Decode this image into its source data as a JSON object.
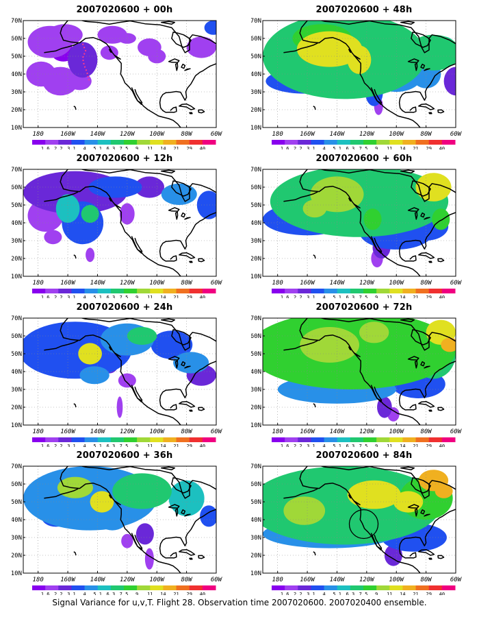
{
  "panels": [
    {
      "title": "2007020600 + 00h",
      "lead_hours": 0
    },
    {
      "title": "2007020600 + 48h",
      "lead_hours": 48
    },
    {
      "title": "2007020600 + 12h",
      "lead_hours": 12
    },
    {
      "title": "2007020600 + 60h",
      "lead_hours": 60
    },
    {
      "title": "2007020600 + 24h",
      "lead_hours": 24
    },
    {
      "title": "2007020600 + 72h",
      "lead_hours": 72
    },
    {
      "title": "2007020600 + 36h",
      "lead_hours": 36
    },
    {
      "title": "2007020600 + 84h",
      "lead_hours": 84
    }
  ],
  "axes": {
    "x_ticks": [
      "180",
      "160W",
      "140W",
      "120W",
      "100W",
      "80W",
      "60W"
    ],
    "y_ticks": [
      "10N",
      "20N",
      "30N",
      "40N",
      "50N",
      "60N",
      "70N"
    ],
    "lon_range": [
      170,
      300
    ],
    "lat_range": [
      10,
      70
    ]
  },
  "legend": {
    "levels": [
      "1.6",
      "2.2",
      "3.1",
      "4",
      "5.1",
      "6.3",
      "7.5",
      "9",
      "11",
      "14",
      "21",
      "29",
      "40"
    ],
    "colors": [
      "#8800ee",
      "#a040f0",
      "#6a28d8",
      "#2050f0",
      "#2890e8",
      "#1cc0c0",
      "#20c870",
      "#30d030",
      "#a0d838",
      "#e0e020",
      "#f0b020",
      "#f07020",
      "#f03030",
      "#f00080"
    ]
  },
  "caption": "Signal Variance for u,v,T. Flight 28. Observation time 2007020600. 2007020400 ensemble."
}
